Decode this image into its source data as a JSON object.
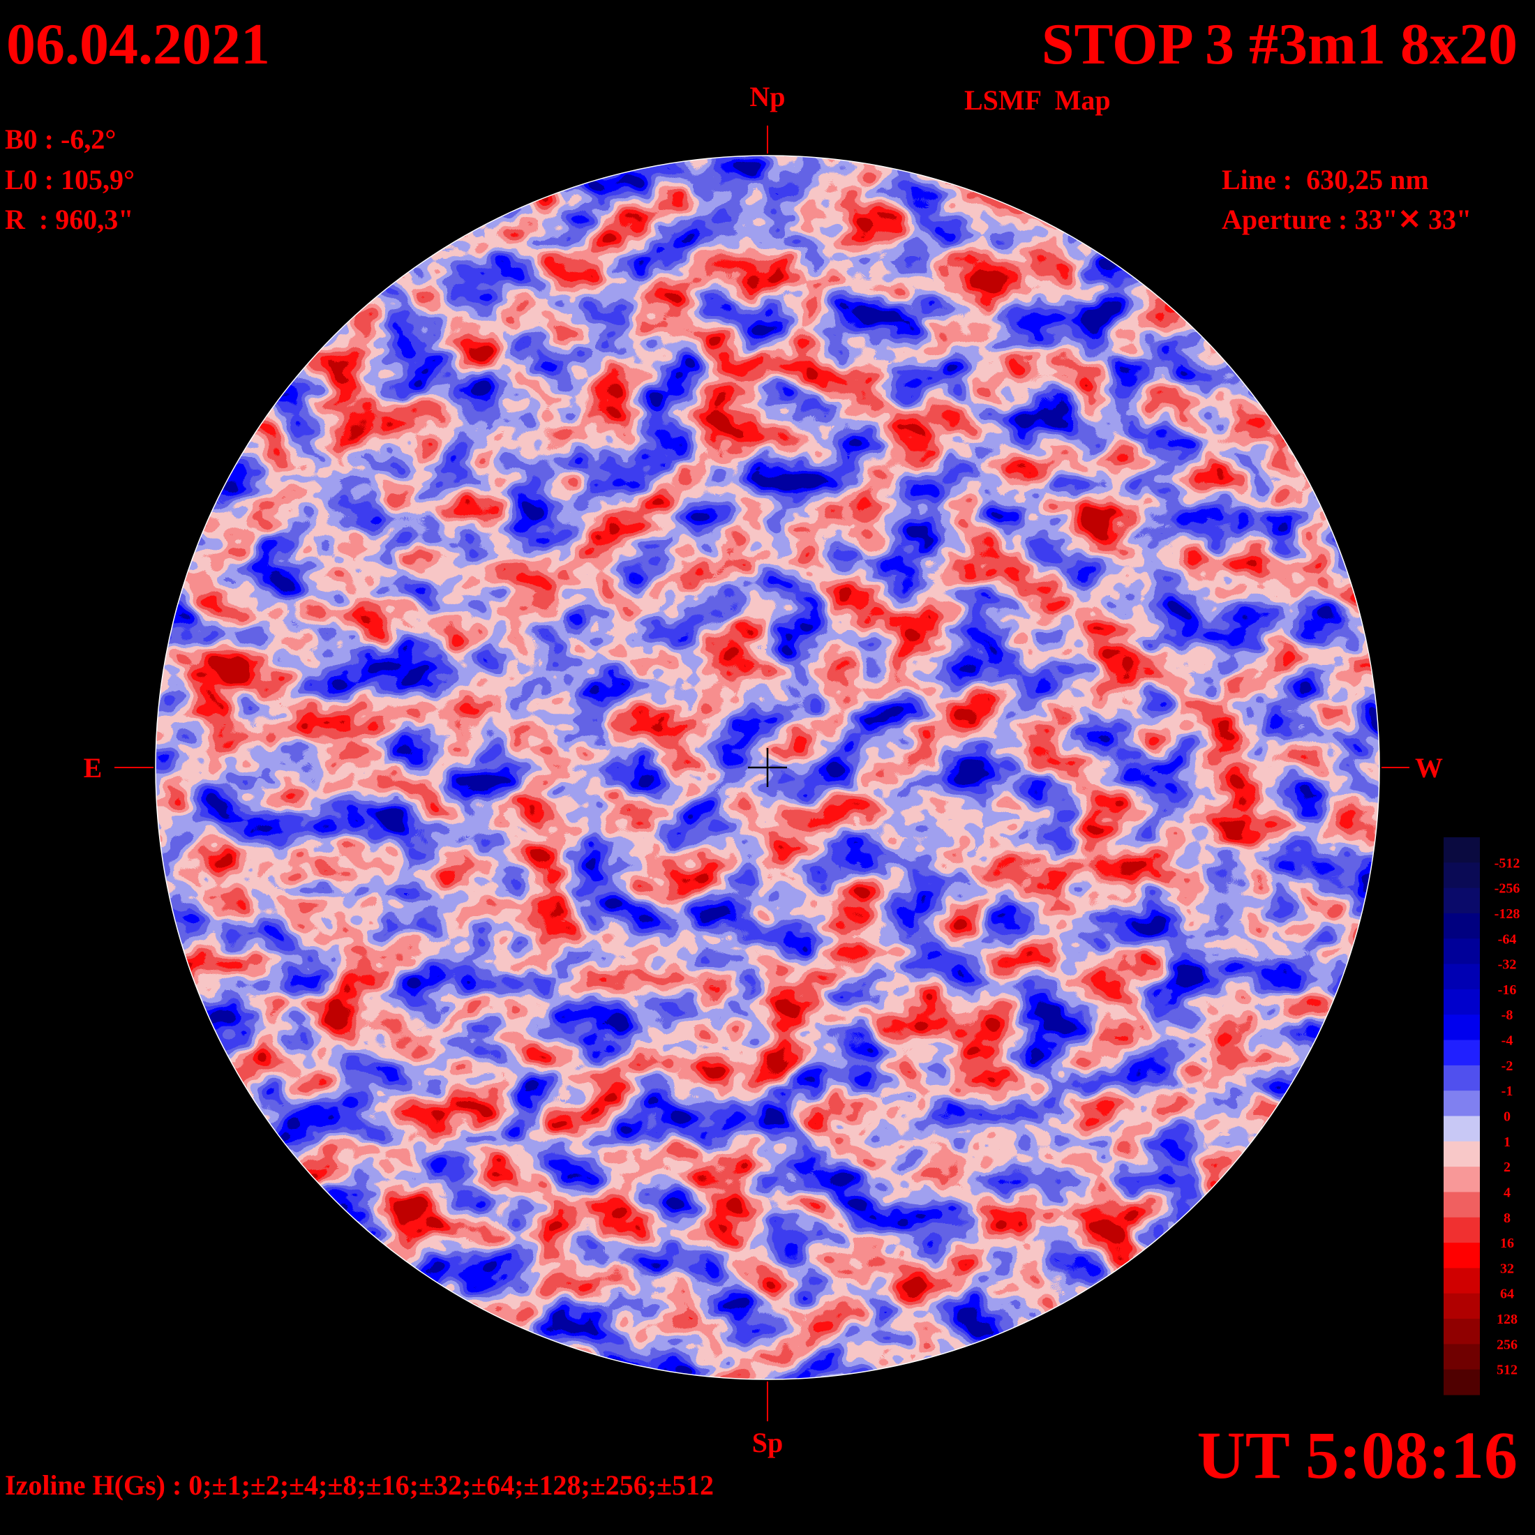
{
  "header": {
    "date": "06.04.2021",
    "title": "STOP 3 #3m1 8x20",
    "subtitle": "LSMF  Map"
  },
  "params": [
    "B0 : -6,2°",
    "L0 : 105,9°",
    "R  : 960,3\""
  ],
  "instrument": [
    "Line :  630,25 nm",
    "Aperture : 33\"✕ 33\""
  ],
  "directions": {
    "north": "Np",
    "south": "Sp",
    "east": "E",
    "west": "W"
  },
  "legend": {
    "labels": [
      "-512",
      "-256",
      "-128",
      "-64",
      "-32",
      "-16",
      "-8",
      "-4",
      "-2",
      "-1",
      "0",
      "1",
      "2",
      "4",
      "8",
      "16",
      "32",
      "64",
      "128",
      "256",
      "512"
    ],
    "colors": [
      "#0a0a40",
      "#0a0a55",
      "#0a0a6a",
      "#000080",
      "#000099",
      "#0000b3",
      "#0000cc",
      "#0000ee",
      "#2020ff",
      "#5050ee",
      "#8080f0",
      "#c8c8f5",
      "#f8c8c8",
      "#f89898",
      "#f06060",
      "#f03030",
      "#ff0000",
      "#d00000",
      "#b00000",
      "#900000",
      "#700000",
      "#500000"
    ]
  },
  "footer": {
    "izoline": "Izoline H(Gs) : 0;±1;±2;±4;±8;±16;±32;±64;±128;±256;±512",
    "time": "UT 5:08:16"
  }
}
